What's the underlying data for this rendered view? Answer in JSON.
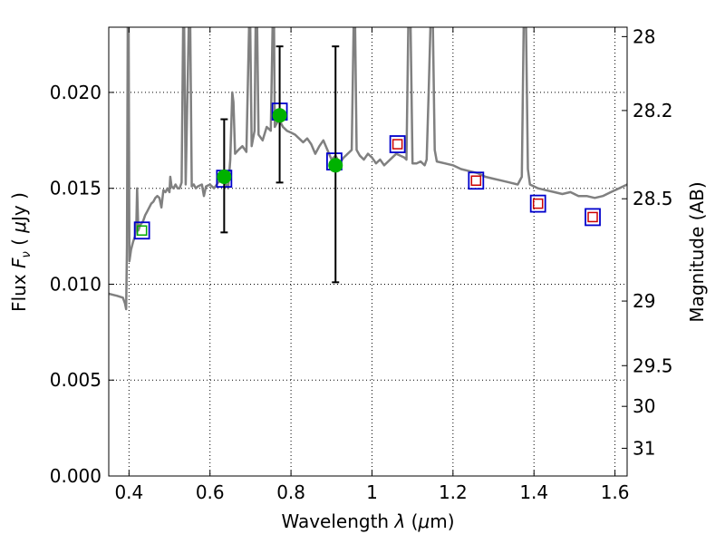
{
  "chart_data": {
    "type": "scatter",
    "xlabel": "Wavelength λ (μm)",
    "ylabel_left": "Flux Fν (μJy)",
    "ylabel_right": "Magnitude (AB)",
    "xlim": [
      0.35,
      1.63
    ],
    "ylim": [
      0.0,
      0.0234
    ],
    "grid": true,
    "x_ticks": [
      {
        "value": 0.4,
        "label": "0.4"
      },
      {
        "value": 0.6,
        "label": "0.6"
      },
      {
        "value": 0.8,
        "label": "0.8"
      },
      {
        "value": 1.0,
        "label": "1"
      },
      {
        "value": 1.2,
        "label": "1.2"
      },
      {
        "value": 1.4,
        "label": "1.4"
      },
      {
        "value": 1.6,
        "label": "1.6"
      }
    ],
    "y_ticks": [
      {
        "value": 0.0,
        "label": "0.000"
      },
      {
        "value": 0.005,
        "label": "0.005"
      },
      {
        "value": 0.01,
        "label": "0.010"
      },
      {
        "value": 0.015,
        "label": "0.015"
      },
      {
        "value": 0.02,
        "label": "0.020"
      }
    ],
    "mag_ticks": [
      {
        "mag": 28,
        "label": "28"
      },
      {
        "mag": 28.2,
        "label": "28.2"
      },
      {
        "mag": 28.5,
        "label": "28.5"
      },
      {
        "mag": 29,
        "label": "29"
      },
      {
        "mag": 29.5,
        "label": "29.5"
      },
      {
        "mag": 30,
        "label": "30"
      },
      {
        "mag": 31,
        "label": "31"
      }
    ],
    "series": [
      {
        "role": "template_spectrum",
        "style": "line",
        "color": "#808080",
        "points": [
          [
            0.35,
            0.0095
          ],
          [
            0.37,
            0.0094
          ],
          [
            0.385,
            0.0093
          ],
          [
            0.39,
            0.009
          ],
          [
            0.393,
            0.0087
          ],
          [
            0.395,
            0.012
          ],
          [
            0.397,
            0.024
          ],
          [
            0.399,
            0.024
          ],
          [
            0.401,
            0.0112
          ],
          [
            0.405,
            0.0118
          ],
          [
            0.41,
            0.0122
          ],
          [
            0.415,
            0.0125
          ],
          [
            0.418,
            0.013
          ],
          [
            0.42,
            0.015
          ],
          [
            0.423,
            0.0128
          ],
          [
            0.428,
            0.0131
          ],
          [
            0.435,
            0.0133
          ],
          [
            0.44,
            0.0136
          ],
          [
            0.445,
            0.0138
          ],
          [
            0.45,
            0.014
          ],
          [
            0.455,
            0.0142
          ],
          [
            0.46,
            0.0143
          ],
          [
            0.465,
            0.0145
          ],
          [
            0.47,
            0.0146
          ],
          [
            0.475,
            0.0145
          ],
          [
            0.48,
            0.014
          ],
          [
            0.485,
            0.0149
          ],
          [
            0.49,
            0.0148
          ],
          [
            0.495,
            0.015
          ],
          [
            0.5,
            0.0148
          ],
          [
            0.502,
            0.0156
          ],
          [
            0.505,
            0.0151
          ],
          [
            0.51,
            0.015
          ],
          [
            0.515,
            0.0152
          ],
          [
            0.52,
            0.015
          ],
          [
            0.525,
            0.015
          ],
          [
            0.53,
            0.0153
          ],
          [
            0.534,
            0.024
          ],
          [
            0.536,
            0.024
          ],
          [
            0.54,
            0.0152
          ],
          [
            0.548,
            0.024
          ],
          [
            0.551,
            0.024
          ],
          [
            0.555,
            0.0151
          ],
          [
            0.56,
            0.0152
          ],
          [
            0.565,
            0.015
          ],
          [
            0.57,
            0.0151
          ],
          [
            0.58,
            0.0152
          ],
          [
            0.585,
            0.0146
          ],
          [
            0.59,
            0.0151
          ],
          [
            0.6,
            0.0152
          ],
          [
            0.61,
            0.015
          ],
          [
            0.62,
            0.0153
          ],
          [
            0.63,
            0.0155
          ],
          [
            0.64,
            0.0152
          ],
          [
            0.645,
            0.015
          ],
          [
            0.65,
            0.0165
          ],
          [
            0.655,
            0.02
          ],
          [
            0.658,
            0.0195
          ],
          [
            0.662,
            0.0168
          ],
          [
            0.67,
            0.017
          ],
          [
            0.68,
            0.0172
          ],
          [
            0.69,
            0.0169
          ],
          [
            0.697,
            0.024
          ],
          [
            0.699,
            0.024
          ],
          [
            0.703,
            0.0172
          ],
          [
            0.71,
            0.018
          ],
          [
            0.713,
            0.024
          ],
          [
            0.716,
            0.024
          ],
          [
            0.72,
            0.0178
          ],
          [
            0.73,
            0.0175
          ],
          [
            0.74,
            0.0182
          ],
          [
            0.75,
            0.018
          ],
          [
            0.755,
            0.024
          ],
          [
            0.758,
            0.024
          ],
          [
            0.76,
            0.0182
          ],
          [
            0.77,
            0.0186
          ],
          [
            0.78,
            0.0182
          ],
          [
            0.79,
            0.018
          ],
          [
            0.8,
            0.0179
          ],
          [
            0.81,
            0.0178
          ],
          [
            0.82,
            0.0176
          ],
          [
            0.83,
            0.0174
          ],
          [
            0.84,
            0.0176
          ],
          [
            0.85,
            0.0173
          ],
          [
            0.86,
            0.0168
          ],
          [
            0.87,
            0.0172
          ],
          [
            0.88,
            0.0175
          ],
          [
            0.89,
            0.017
          ],
          [
            0.9,
            0.0165
          ],
          [
            0.91,
            0.0167
          ],
          [
            0.92,
            0.0163
          ],
          [
            0.93,
            0.0166
          ],
          [
            0.94,
            0.0168
          ],
          [
            0.95,
            0.017
          ],
          [
            0.955,
            0.024
          ],
          [
            0.958,
            0.024
          ],
          [
            0.962,
            0.017
          ],
          [
            0.97,
            0.0167
          ],
          [
            0.98,
            0.0165
          ],
          [
            0.99,
            0.0168
          ],
          [
            1.0,
            0.0166
          ],
          [
            1.01,
            0.0163
          ],
          [
            1.02,
            0.0165
          ],
          [
            1.03,
            0.0162
          ],
          [
            1.04,
            0.0164
          ],
          [
            1.05,
            0.0166
          ],
          [
            1.06,
            0.0168
          ],
          [
            1.07,
            0.0167
          ],
          [
            1.08,
            0.0166
          ],
          [
            1.085,
            0.0165
          ],
          [
            1.09,
            0.024
          ],
          [
            1.095,
            0.024
          ],
          [
            1.1,
            0.0163
          ],
          [
            1.11,
            0.0163
          ],
          [
            1.12,
            0.0164
          ],
          [
            1.13,
            0.0162
          ],
          [
            1.135,
            0.0165
          ],
          [
            1.14,
            0.02
          ],
          [
            1.145,
            0.024
          ],
          [
            1.15,
            0.024
          ],
          [
            1.155,
            0.017
          ],
          [
            1.16,
            0.0164
          ],
          [
            1.18,
            0.0163
          ],
          [
            1.2,
            0.0162
          ],
          [
            1.22,
            0.016
          ],
          [
            1.24,
            0.0159
          ],
          [
            1.26,
            0.0158
          ],
          [
            1.28,
            0.0156
          ],
          [
            1.3,
            0.0155
          ],
          [
            1.32,
            0.0154
          ],
          [
            1.34,
            0.0153
          ],
          [
            1.36,
            0.0152
          ],
          [
            1.37,
            0.0156
          ],
          [
            1.375,
            0.024
          ],
          [
            1.38,
            0.024
          ],
          [
            1.385,
            0.016
          ],
          [
            1.39,
            0.0152
          ],
          [
            1.41,
            0.015
          ],
          [
            1.43,
            0.0149
          ],
          [
            1.45,
            0.0148
          ],
          [
            1.47,
            0.0147
          ],
          [
            1.49,
            0.0148
          ],
          [
            1.51,
            0.0146
          ],
          [
            1.53,
            0.0146
          ],
          [
            1.55,
            0.0145
          ],
          [
            1.57,
            0.0146
          ],
          [
            1.59,
            0.0148
          ],
          [
            1.61,
            0.015
          ],
          [
            1.63,
            0.0152
          ]
        ]
      },
      {
        "role": "model_fluxes",
        "style": "open_square",
        "color": "#0000cc",
        "points": [
          [
            0.432,
            0.0128
          ],
          [
            0.635,
            0.0155
          ],
          [
            0.772,
            0.019
          ],
          [
            0.907,
            0.0164
          ],
          [
            1.063,
            0.0173
          ],
          [
            1.257,
            0.0154
          ],
          [
            1.41,
            0.0142
          ],
          [
            1.545,
            0.0135
          ]
        ]
      },
      {
        "role": "upper_limit_fluxes",
        "style": "open_square_small",
        "color": "#cc0000",
        "points": [
          [
            1.063,
            0.0173
          ],
          [
            1.257,
            0.0154
          ],
          [
            1.41,
            0.0142
          ],
          [
            1.545,
            0.0135
          ]
        ]
      },
      {
        "role": "small_marker_at_first_point",
        "style": "open_square_small",
        "color": "#00aa00",
        "points": [
          [
            0.432,
            0.0128
          ]
        ]
      },
      {
        "role": "observed_fluxes",
        "style": "filled_circle_with_errorbar",
        "color": "#00b200",
        "points": [
          {
            "x": 0.635,
            "y": 0.0156,
            "lo": 0.0127,
            "hi": 0.0186
          },
          {
            "x": 0.772,
            "y": 0.0188,
            "lo": 0.0153,
            "hi": 0.0224
          },
          {
            "x": 0.91,
            "y": 0.0162,
            "lo": 0.0101,
            "hi": 0.0224
          }
        ]
      }
    ]
  }
}
